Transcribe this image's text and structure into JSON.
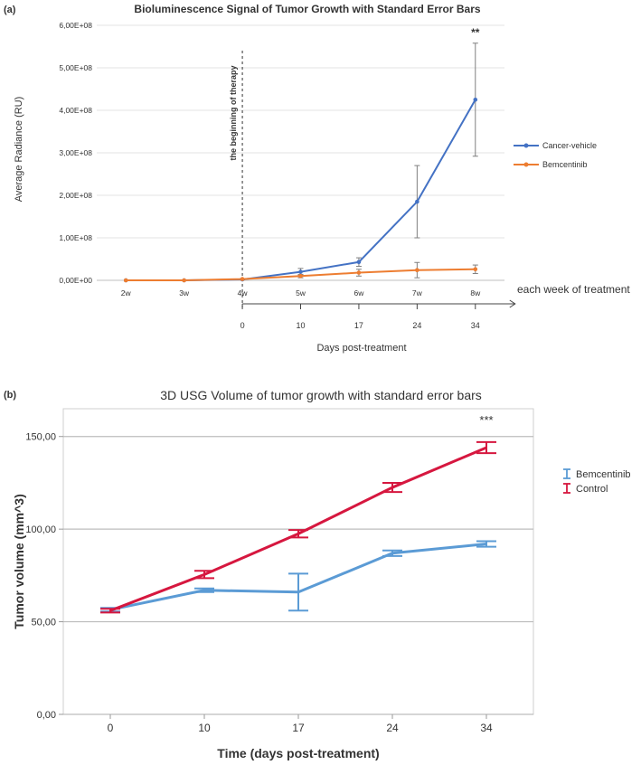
{
  "chart_data": [
    {
      "panel_label": "(a)",
      "type": "line",
      "title": "Bioluminescence Signal of Tumor Growth with Standard Error Bars",
      "ylabel": "Average Radiance (RU)",
      "xlabel": "each week of treatment",
      "secondary_xlabel": "Days post-treatment",
      "categories": [
        "2w",
        "3w",
        "4w",
        "5w",
        "6w",
        "7w",
        "8w"
      ],
      "secondary_ticks": [
        "0",
        "10",
        "17",
        "24",
        "34"
      ],
      "y_tick_labels": [
        "0,00E+00",
        "1,00E+08",
        "2,00E+08",
        "3,00E+08",
        "4,00E+08",
        "5,00E+08",
        "6,00E+08"
      ],
      "ylim": [
        0,
        600000000
      ],
      "grid": true,
      "legend_position": "right",
      "annotation_vertical_line": {
        "at": "4w",
        "label": "the beginning of therapy"
      },
      "significance": {
        "at": "8w",
        "label": "**"
      },
      "series": [
        {
          "name": "Cancer-vehicle",
          "color": "#4472c4",
          "values": [
            0,
            0,
            2000000,
            20000000,
            43000000,
            185000000,
            425000000
          ],
          "errors": [
            0,
            0,
            1000000,
            8000000,
            10000000,
            85000000,
            133000000
          ]
        },
        {
          "name": "Bemcentinib",
          "color": "#ed7d31",
          "values": [
            0,
            0,
            3000000,
            10000000,
            18000000,
            24000000,
            26000000
          ],
          "errors": [
            0,
            0,
            1000000,
            4000000,
            8000000,
            18000000,
            10000000
          ]
        }
      ]
    },
    {
      "panel_label": "(b)",
      "type": "line",
      "title": "3D USG Volume of tumor growth with standard error bars",
      "ylabel": "Tumor volume (mm^3)",
      "xlabel": "Time (days post-treatment)",
      "categories": [
        "0",
        "10",
        "17",
        "24",
        "34"
      ],
      "y_tick_labels": [
        "0,00",
        "50,00",
        "100,00",
        "150,00"
      ],
      "ylim": [
        0,
        165
      ],
      "grid": true,
      "legend_position": "right",
      "significance": {
        "at": "34",
        "label": "***"
      },
      "series": [
        {
          "name": "Bemcentinib",
          "color": "#5b9bd5",
          "values": [
            56.5,
            67,
            66,
            87,
            92
          ],
          "errors": [
            1,
            1,
            10,
            1.5,
            1.5
          ]
        },
        {
          "name": "Control",
          "color": "#d6173f",
          "values": [
            56,
            75.5,
            97.5,
            122.5,
            144
          ],
          "errors": [
            1,
            2,
            2,
            2.5,
            3
          ]
        }
      ]
    }
  ]
}
